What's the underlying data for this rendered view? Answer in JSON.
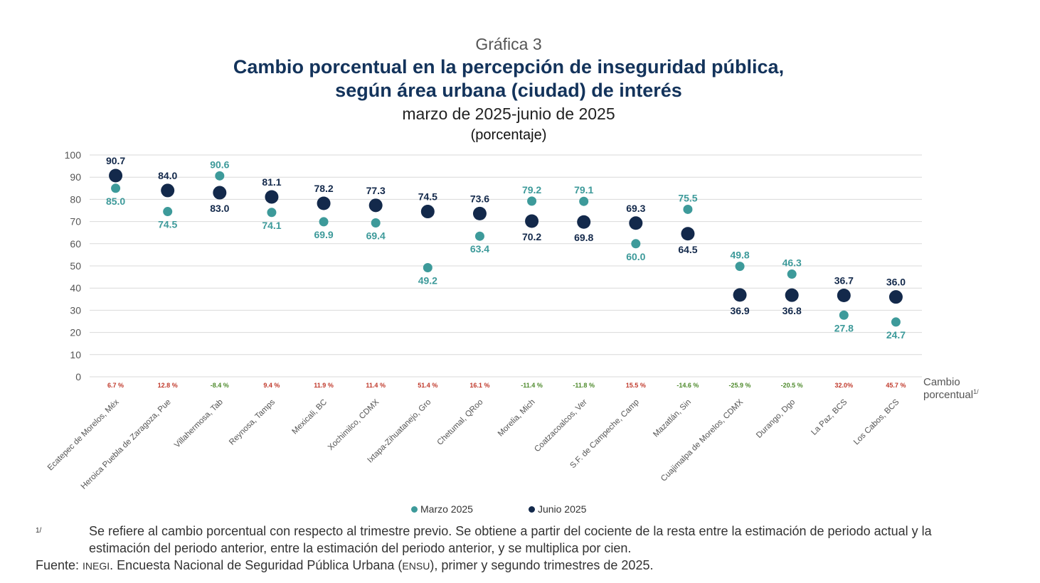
{
  "header": {
    "kicker": "Gráfica 3",
    "title_line1": "Cambio porcentual en la percepción de inseguridad pública,",
    "title_line2": "según área urbana (ciudad) de interés",
    "subtitle": "marzo de 2025-junio de 2025",
    "units": "(porcentaje)"
  },
  "colors": {
    "marzo": "#3d9a9a",
    "junio": "#13294b",
    "title": "#13335b",
    "increase": "#c0392b",
    "decrease": "#4e8a2c",
    "grid": "#d9d9d9"
  },
  "chart_data": {
    "type": "scatter",
    "categories": [
      "Ecatepec de Morelos, Méx",
      "Heroica Puebla de Zaragoza, Pue",
      "Villahermosa, Tab",
      "Reynosa, Tamps",
      "Mexicali, BC",
      "Xochimilco, CDMX",
      "Ixtapa-Zihuatanejo, Gro",
      "Chetumal, QRoo",
      "Morelia, Mich",
      "Coatzacoalcos, Ver",
      "S.F. de Campeche, Camp",
      "Mazatlán, Sin",
      "Cuajimalpa de Morelos, CDMX",
      "Durango, Dgo",
      "La Paz, BCS",
      "Los Cabos, BCS"
    ],
    "series": [
      {
        "name": "Marzo 2025",
        "values": [
          85.0,
          74.5,
          90.6,
          74.1,
          69.9,
          69.4,
          49.2,
          63.4,
          79.2,
          79.1,
          60.0,
          75.5,
          49.8,
          46.3,
          27.8,
          24.7
        ]
      },
      {
        "name": "Junio 2025",
        "values": [
          90.7,
          84.0,
          83.0,
          81.1,
          78.2,
          77.3,
          74.5,
          73.6,
          70.2,
          69.8,
          69.3,
          64.5,
          36.9,
          36.8,
          36.7,
          36.0
        ]
      }
    ],
    "change_labels": [
      "6.7 %",
      "12.8 %",
      "-8.4 %",
      "9.4 %",
      "11.9 %",
      "11.4 %",
      "51.4 %",
      "16.1 %",
      "-11.4 %",
      "-11.8 %",
      "15.5 %",
      "-14.6 %",
      "-25.9 %",
      "-20.5 %",
      "32.0%",
      "45.7 %"
    ],
    "change_values": [
      6.7,
      12.8,
      -8.4,
      9.4,
      11.9,
      11.4,
      51.4,
      16.1,
      -11.4,
      -11.8,
      15.5,
      -14.6,
      -25.9,
      -20.5,
      32.0,
      45.7
    ],
    "change_axis_label_line1": "Cambio",
    "change_axis_label_line2": "porcentual",
    "change_axis_label_mark": "1/",
    "yticks": [
      "0",
      "10",
      "20",
      "30",
      "40",
      "50",
      "60",
      "70",
      "80",
      "90",
      "100"
    ],
    "ylim": [
      0,
      100
    ],
    "grid": true,
    "legend": "bottom"
  },
  "footnote": {
    "mark": "1/",
    "text": "Se refiere al cambio porcentual con respecto al trimestre previo. Se obtiene a partir del cociente de la resta entre la estimación de periodo actual y la estimación del periodo anterior, entre la estimación del periodo anterior, y se multiplica por cien."
  },
  "source": {
    "prefix": "Fuente: ",
    "org": "INEGI",
    "middle": ". Encuesta Nacional de Seguridad Pública Urbana (",
    "survey": "ENSU",
    "suffix": "), primer y segundo trimestres de 2025."
  }
}
